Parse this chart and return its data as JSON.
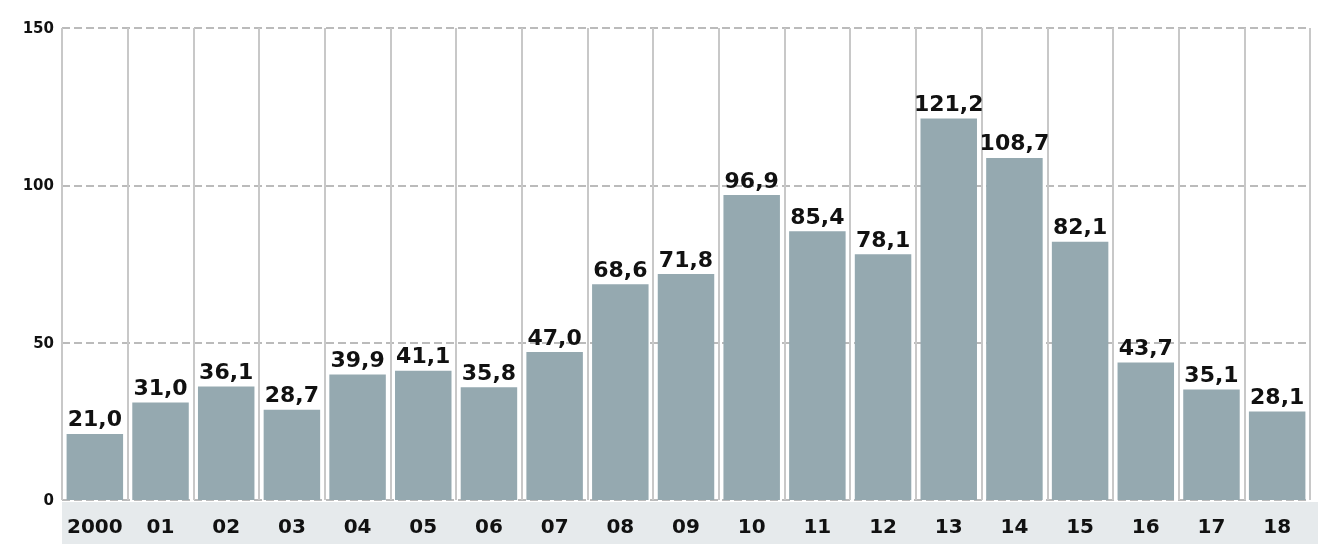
{
  "chart_data": {
    "type": "bar",
    "categories": [
      "2000",
      "01",
      "02",
      "03",
      "04",
      "05",
      "06",
      "07",
      "08",
      "09",
      "10",
      "11",
      "12",
      "13",
      "14",
      "15",
      "16",
      "17",
      "18"
    ],
    "values": [
      21.0,
      31.0,
      36.1,
      28.7,
      39.9,
      41.1,
      35.8,
      47.0,
      68.6,
      71.8,
      96.9,
      85.4,
      78.1,
      121.2,
      108.7,
      82.1,
      43.7,
      35.1,
      28.1
    ],
    "value_labels": [
      "21,0",
      "31,0",
      "36,1",
      "28,7",
      "39,9",
      "41,1",
      "35,8",
      "47,0",
      "68,6",
      "71,8",
      "96,9",
      "85,4",
      "78,1",
      "121,2",
      "108,7",
      "82,1",
      "43,7",
      "35,1",
      "28,1"
    ],
    "color": "#95a9b0",
    "ylim": [
      0,
      150
    ],
    "yticks": [
      0,
      50,
      100,
      150
    ],
    "grid": true
  }
}
